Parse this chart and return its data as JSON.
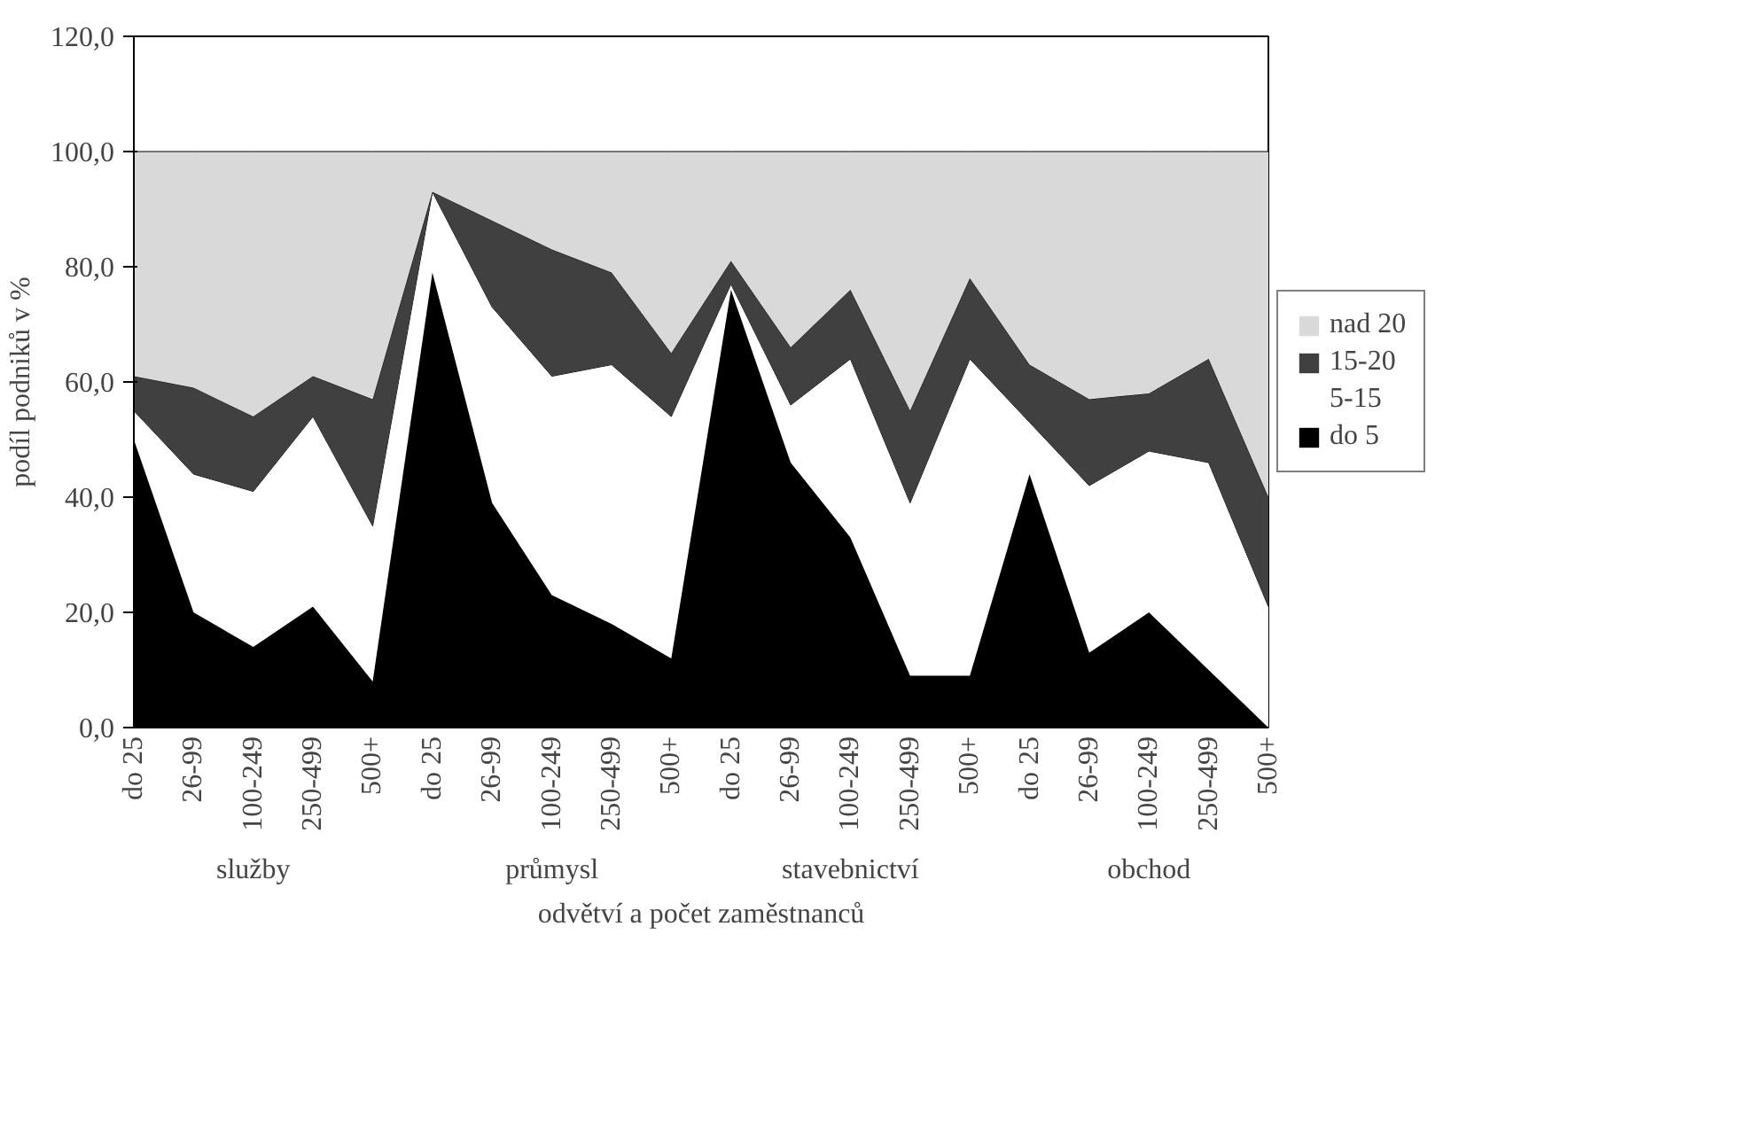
{
  "chart_data": {
    "type": "area",
    "stacked": true,
    "categories": [
      "do 25",
      "26-99",
      "100-249",
      "250-499",
      "500+",
      "do 25",
      "26-99",
      "100-249",
      "250-499",
      "500+",
      "do 25",
      "26-99",
      "100-249",
      "250-499",
      "500+",
      "do 25",
      "26-99",
      "100-249",
      "250-499",
      "500+"
    ],
    "series": [
      {
        "name": "do 5",
        "color": "#000000",
        "values": [
          50,
          20,
          14,
          21,
          8,
          79,
          39,
          23,
          18,
          12,
          76,
          46,
          33,
          9,
          9,
          44,
          13,
          20,
          10,
          0
        ]
      },
      {
        "name": "5-15",
        "color": "#ffffff",
        "values": [
          5,
          24,
          27,
          33,
          27,
          14,
          34,
          38,
          45,
          42,
          1,
          10,
          31,
          30,
          55,
          9,
          29,
          28,
          36,
          21
        ]
      },
      {
        "name": "15-20",
        "color": "#404040",
        "values": [
          6,
          15,
          13,
          7,
          22,
          0,
          15,
          22,
          16,
          11,
          4,
          10,
          12,
          16,
          14,
          10,
          15,
          10,
          18,
          19
        ]
      },
      {
        "name": "nad 20",
        "color": "#d9d9d9",
        "values": [
          39,
          41,
          46,
          39,
          43,
          7,
          12,
          17,
          21,
          35,
          19,
          34,
          24,
          45,
          22,
          37,
          43,
          42,
          36,
          60
        ]
      }
    ],
    "annotations": [
      "služby",
      "průmysl",
      "stavebnictví",
      "obchod"
    ],
    "xlabel": "odvětví a počet zaměstnanců",
    "ylabel": "podíl podniků v %",
    "ylim": [
      0,
      120
    ],
    "yticks": [
      {
        "value": 0,
        "label": "0,0"
      },
      {
        "value": 20,
        "label": "20,0"
      },
      {
        "value": 40,
        "label": "40,0"
      },
      {
        "value": 60,
        "label": "60,0"
      },
      {
        "value": 80,
        "label": "80,0"
      },
      {
        "value": 100,
        "label": "100,0"
      },
      {
        "value": 120,
        "label": "120,0"
      }
    ],
    "grid": false,
    "legend": "right"
  }
}
